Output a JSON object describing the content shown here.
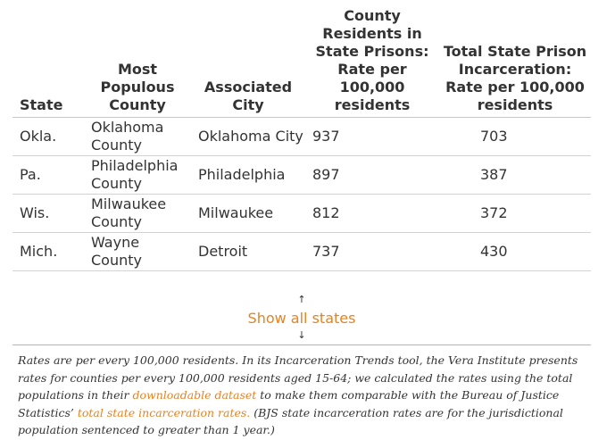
{
  "table": {
    "headers": {
      "state": "State",
      "county": "Most Populous County",
      "city": "Associated City",
      "county_rate": "County Residents in State Prisons: Rate per 100,000 residents",
      "state_rate": "Total State Prison Incarceration: Rate per 100,000 residents"
    },
    "rows": [
      {
        "state": "Okla.",
        "county": "Oklahoma County",
        "city": "Oklahoma City",
        "county_rate": "937",
        "state_rate": "703"
      },
      {
        "state": "Pa.",
        "county": "Philadelphia County",
        "city": "Philadelphia",
        "county_rate": "897",
        "state_rate": "387"
      },
      {
        "state": "Wis.",
        "county": "Milwaukee County",
        "city": "Milwaukee",
        "county_rate": "812",
        "state_rate": "372"
      },
      {
        "state": "Mich.",
        "county": "Wayne County",
        "city": "Detroit",
        "county_rate": "737",
        "state_rate": "430"
      }
    ]
  },
  "toggle": {
    "label": "Show all states",
    "arrow_up": "↑",
    "arrow_down": "↓"
  },
  "note": {
    "part1": "Rates are per every 100,000 residents. In its Incarceration Trends tool, the Vera Institute presents rates for counties per every 100,000 residents aged 15-64; we calculated the rates using the total populations in their ",
    "link1": "downloadable dataset",
    "part2": " to make them comparable with the Bureau of Justice Statistics’ ",
    "link2": "total state incarceration rates.",
    "part3": " (BJS state incarceration rates are for the jurisdictional population sentenced to greater than 1 year.)"
  },
  "colors": {
    "link": "#e8821e",
    "text": "#333333",
    "rule": "#d3d3d3"
  }
}
